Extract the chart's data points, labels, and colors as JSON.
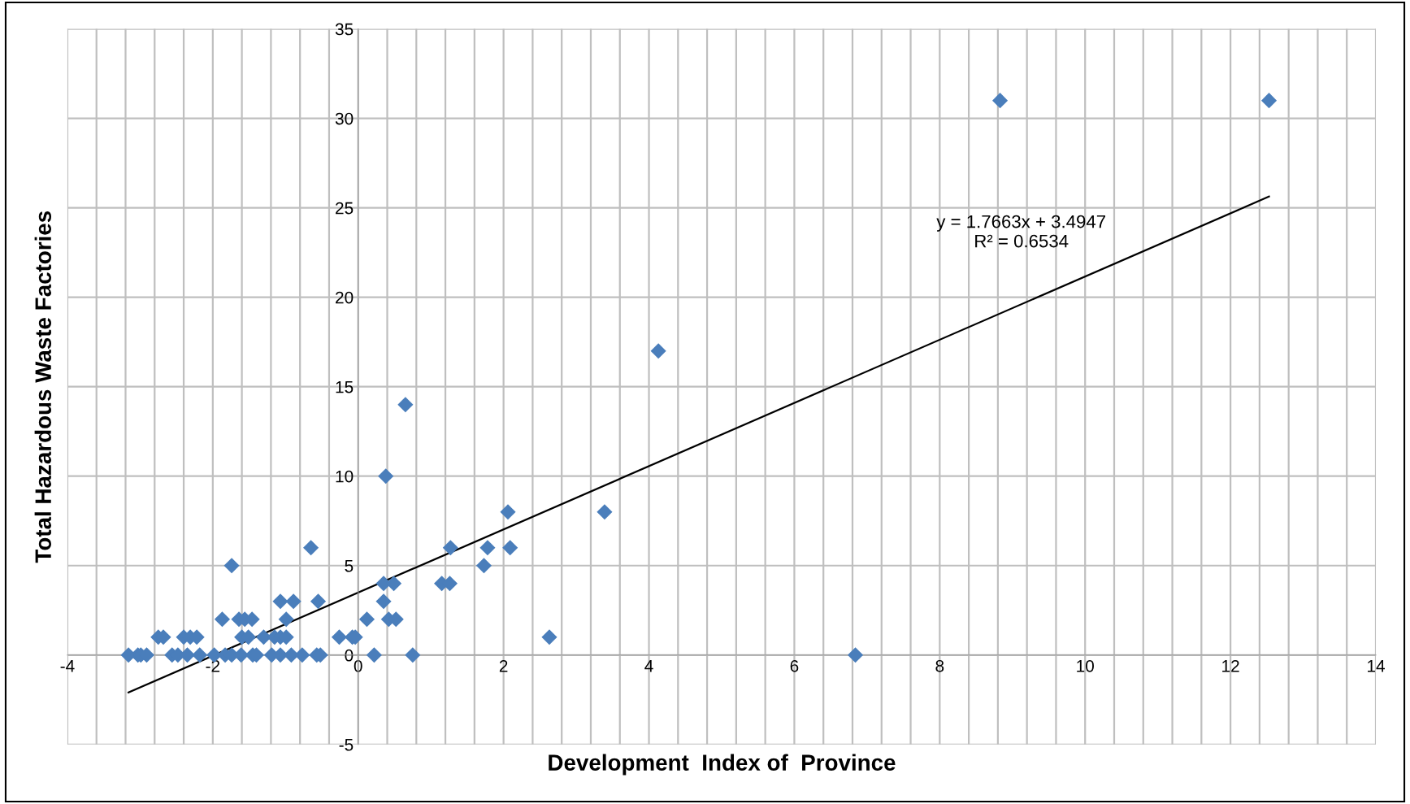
{
  "chart_data": {
    "type": "scatter",
    "xlabel": "Development  Index of  Province",
    "ylabel": "Total Hazardous Waste Factories",
    "series": [
      {
        "color": "#4a7ebb",
        "marker": "diamond",
        "x": [
          -3.16,
          -3.03,
          -2.99,
          -2.91,
          -2.56,
          -2.48,
          -2.35,
          -2.18,
          -1.98,
          -1.83,
          -1.74,
          -1.61,
          -1.45,
          -1.4,
          -1.19,
          -1.07,
          -0.92,
          -0.77,
          -0.57,
          -0.52,
          0.22,
          0.75,
          6.84,
          -2.75,
          -2.68,
          -2.4,
          -2.31,
          -2.22,
          -1.6,
          -1.51,
          -1.3,
          -1.15,
          -1.07,
          -0.99,
          -0.26,
          -0.08,
          -0.04,
          2.63,
          -1.87,
          -1.64,
          -1.56,
          -1.46,
          -0.99,
          0.12,
          0.42,
          0.52,
          -1.07,
          -0.89,
          -0.55,
          0.35,
          0.35,
          0.49,
          1.15,
          1.26,
          -1.74,
          1.73,
          -0.65,
          1.27,
          1.78,
          2.09,
          2.06,
          3.39,
          0.38,
          0.65,
          4.13,
          8.83,
          12.53
        ],
        "values": [
          0,
          0,
          0,
          0,
          0,
          0,
          0,
          0,
          0,
          0,
          0,
          0,
          0,
          0,
          0,
          0,
          0,
          0,
          0,
          0,
          0,
          0,
          0,
          1,
          1,
          1,
          1,
          1,
          1,
          1,
          1,
          1,
          1,
          1,
          1,
          1,
          1,
          1,
          2,
          2,
          2,
          2,
          2,
          2,
          2,
          2,
          3,
          3,
          3,
          3,
          4,
          4,
          4,
          4,
          5,
          5,
          6,
          6,
          6,
          6,
          8,
          8,
          10,
          14,
          17,
          31,
          31
        ]
      },
      {
        "type": "line",
        "color": "#000000",
        "line_style": "solid",
        "x": [
          -3.16,
          12.53
        ],
        "values": [
          -2.09,
          25.63
        ]
      }
    ],
    "annotations": [
      "y = 1.7663x + 3.4947\nR² = 0.6534"
    ],
    "xlim": [
      -4,
      14
    ],
    "ylim": [
      -5,
      35
    ],
    "xticks": [
      -4,
      {
        "value": -3.6,
        "label": null
      },
      {
        "value": -3.2,
        "label": null
      },
      {
        "value": -2.8,
        "label": null
      },
      {
        "value": -2.4,
        "label": null
      },
      -2,
      {
        "value": -1.6,
        "label": null
      },
      {
        "value": -1.2,
        "label": null
      },
      {
        "value": -0.8,
        "label": null
      },
      {
        "value": -0.4,
        "label": null
      },
      0,
      {
        "value": 0.4,
        "label": null
      },
      {
        "value": 0.8,
        "label": null
      },
      {
        "value": 1.2,
        "label": null
      },
      {
        "value": 1.6,
        "label": null
      },
      2,
      {
        "value": 2.4,
        "label": null
      },
      {
        "value": 2.8,
        "label": null
      },
      {
        "value": 3.2,
        "label": null
      },
      {
        "value": 3.6,
        "label": null
      },
      4,
      {
        "value": 4.4,
        "label": null
      },
      {
        "value": 4.8,
        "label": null
      },
      {
        "value": 5.2,
        "label": null
      },
      {
        "value": 5.6,
        "label": null
      },
      6,
      {
        "value": 6.4,
        "label": null
      },
      {
        "value": 6.8,
        "label": null
      },
      {
        "value": 7.2,
        "label": null
      },
      {
        "value": 7.6,
        "label": null
      },
      8,
      {
        "value": 8.4,
        "label": null
      },
      {
        "value": 8.8,
        "label": null
      },
      {
        "value": 9.2,
        "label": null
      },
      {
        "value": 9.6,
        "label": null
      },
      10,
      {
        "value": 10.4,
        "label": null
      },
      {
        "value": 10.8,
        "label": null
      },
      {
        "value": 11.2,
        "label": null
      },
      {
        "value": 11.6,
        "label": null
      },
      12,
      {
        "value": 12.4,
        "label": null
      },
      {
        "value": 12.8,
        "label": null
      },
      {
        "value": 13.2,
        "label": null
      },
      {
        "value": 13.6,
        "label": null
      },
      14
    ],
    "yticks": [
      -5,
      0,
      5,
      10,
      15,
      20,
      25,
      30,
      35
    ],
    "grid": true
  }
}
